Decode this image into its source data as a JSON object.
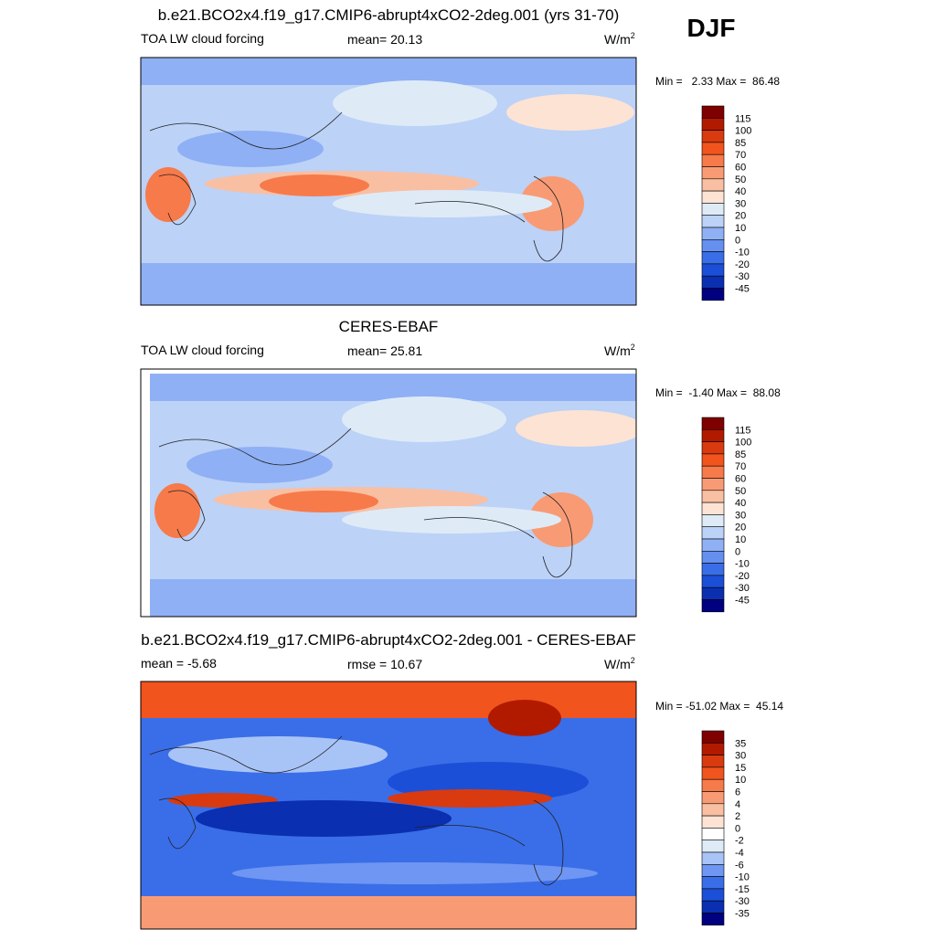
{
  "season": "DJF",
  "panels": [
    {
      "title": "b.e21.BCO2x4.f19_g17.CMIP6-abrupt4xCO2-2deg.001 (yrs 31-70)",
      "left": "TOA LW cloud forcing",
      "center": "mean=  20.13",
      "units": "W/m",
      "units_sup": "2",
      "minmax": "Min =   2.33 Max =  86.48",
      "levels": [
        "115",
        "100",
        "85",
        "70",
        "60",
        "50",
        "40",
        "30",
        "20",
        "10",
        "0",
        "-10",
        "-20",
        "-30",
        "-45"
      ],
      "colors": [
        "#7f0000",
        "#b21a00",
        "#d93a10",
        "#f2541e",
        "#f77a4a",
        "#f89b74",
        "#f9bfa2",
        "#fde3d3",
        "#deebf7",
        "#bcd2f7",
        "#8fb0f5",
        "#6590f0",
        "#3a6ee8",
        "#1c4fd8",
        "#0a2fb0",
        "#000080"
      ]
    },
    {
      "title": "CERES-EBAF",
      "left": "TOA LW cloud forcing",
      "center": "mean=  25.81",
      "units": "W/m",
      "units_sup": "2",
      "minmax": "Min =  -1.40 Max =  88.08",
      "levels": [
        "115",
        "100",
        "85",
        "70",
        "60",
        "50",
        "40",
        "30",
        "20",
        "10",
        "0",
        "-10",
        "-20",
        "-30",
        "-45"
      ],
      "colors": [
        "#7f0000",
        "#b21a00",
        "#d93a10",
        "#f2541e",
        "#f77a4a",
        "#f89b74",
        "#f9bfa2",
        "#fde3d3",
        "#deebf7",
        "#bcd2f7",
        "#8fb0f5",
        "#6590f0",
        "#3a6ee8",
        "#1c4fd8",
        "#0a2fb0",
        "#000080"
      ]
    },
    {
      "title": "b.e21.BCO2x4.f19_g17.CMIP6-abrupt4xCO2-2deg.001 - CERES-EBAF",
      "left": "mean =  -5.68",
      "center": "rmse =  10.67",
      "units": "W/m",
      "units_sup": "2",
      "minmax": "Min = -51.02 Max =  45.14",
      "levels": [
        "35",
        "30",
        "15",
        "10",
        "6",
        "4",
        "2",
        "0",
        "-2",
        "-4",
        "-6",
        "-10",
        "-15",
        "-30",
        "-35"
      ],
      "colors": [
        "#7f0000",
        "#b21a00",
        "#d93a10",
        "#f2541e",
        "#f77a4a",
        "#f89b74",
        "#f9bfa2",
        "#fde3d3",
        "#ffffff",
        "#deebf7",
        "#a8c4f7",
        "#6f96f2",
        "#3a6ee8",
        "#1c4fd8",
        "#0a2fb0",
        "#000080"
      ]
    }
  ]
}
